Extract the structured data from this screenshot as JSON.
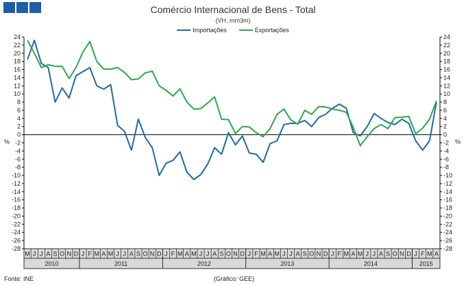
{
  "header": {
    "title": "Comércio Internacional de Bens - Total",
    "subtitle": "(VH, mm3m)"
  },
  "unit_left": "%",
  "unit_right": "%",
  "footer": {
    "source": "Fonte: INE",
    "graphic": "(Gráfico: GEE)"
  },
  "colors": {
    "importacoes": "#1f6aa5",
    "exportacoes": "#2aa84a",
    "logo": "#1e5ea8",
    "axis": "#000000",
    "band": "#d9d9d9"
  },
  "chart_data": {
    "type": "line",
    "title": "Comércio Internacional de Bens - Total",
    "subtitle": "(VH, mm3m)",
    "ylim": [
      -28,
      24
    ],
    "ytick_step": 2,
    "grid": false,
    "legend_position": "top-center",
    "month_labels": [
      "M",
      "J",
      "J",
      "A",
      "S",
      "O",
      "N",
      "D",
      "J",
      "F",
      "M",
      "A",
      "M",
      "J",
      "J",
      "A",
      "S",
      "O",
      "N",
      "D",
      "J",
      "F",
      "M",
      "A",
      "M",
      "J",
      "J",
      "A",
      "S",
      "O",
      "N",
      "D",
      "J",
      "F",
      "M",
      "A",
      "M",
      "J",
      "J",
      "A",
      "S",
      "O",
      "N",
      "D",
      "J",
      "F",
      "M",
      "A",
      "M",
      "J",
      "J",
      "A",
      "S",
      "O",
      "N",
      "D",
      "J",
      "F",
      "M",
      "A"
    ],
    "years": [
      {
        "label": "2010",
        "start": 0,
        "count": 8
      },
      {
        "label": "2011",
        "start": 8,
        "count": 12
      },
      {
        "label": "2012",
        "start": 20,
        "count": 12
      },
      {
        "label": "2013",
        "start": 32,
        "count": 12
      },
      {
        "label": "2014",
        "start": 44,
        "count": 12
      },
      {
        "label": "2015",
        "start": 56,
        "count": 4
      }
    ],
    "series": [
      {
        "name": "Importações",
        "color": "#1f6aa5",
        "values": [
          18.5,
          23.2,
          17.5,
          16.5,
          8.0,
          11.5,
          9.0,
          14.5,
          15.5,
          16.5,
          12.0,
          11.2,
          12.3,
          2.3,
          0.8,
          -3.8,
          3.8,
          -0.7,
          -3.2,
          -10.0,
          -7.0,
          -6.3,
          -4.2,
          -9.2,
          -11.0,
          -9.8,
          -7.2,
          -3.2,
          -4.8,
          0.5,
          -2.5,
          -0.3,
          -4.5,
          -4.8,
          -6.8,
          -2.2,
          -1.5,
          2.5,
          2.8,
          2.8,
          3.5,
          2.0,
          4.2,
          5.0,
          6.5,
          7.5,
          6.5,
          0.5,
          -0.3,
          2.0,
          5.2,
          4.0,
          3.0,
          2.5,
          3.8,
          2.8,
          -1.5,
          -3.8,
          -1.5,
          8.0
        ]
      },
      {
        "name": "Exportações",
        "color": "#2aa84a",
        "values": [
          23.2,
          20.0,
          16.5,
          17.2,
          16.8,
          16.8,
          13.8,
          16.5,
          20.3,
          22.9,
          18.0,
          16.1,
          16.1,
          16.5,
          15.3,
          13.5,
          13.7,
          15.2,
          15.6,
          12.0,
          10.9,
          9.5,
          11.3,
          8.0,
          6.3,
          6.4,
          7.8,
          9.3,
          3.8,
          3.7,
          0.3,
          2.0,
          1.9,
          0.5,
          -0.5,
          1.5,
          5.0,
          6.3,
          3.6,
          2.6,
          6.0,
          5.0,
          6.9,
          6.8,
          6.3,
          6.0,
          5.5,
          1.8,
          -2.7,
          -0.5,
          1.5,
          2.5,
          1.5,
          4.2,
          4.3,
          4.5,
          0.2,
          1.6,
          3.8,
          8.3
        ]
      }
    ]
  }
}
